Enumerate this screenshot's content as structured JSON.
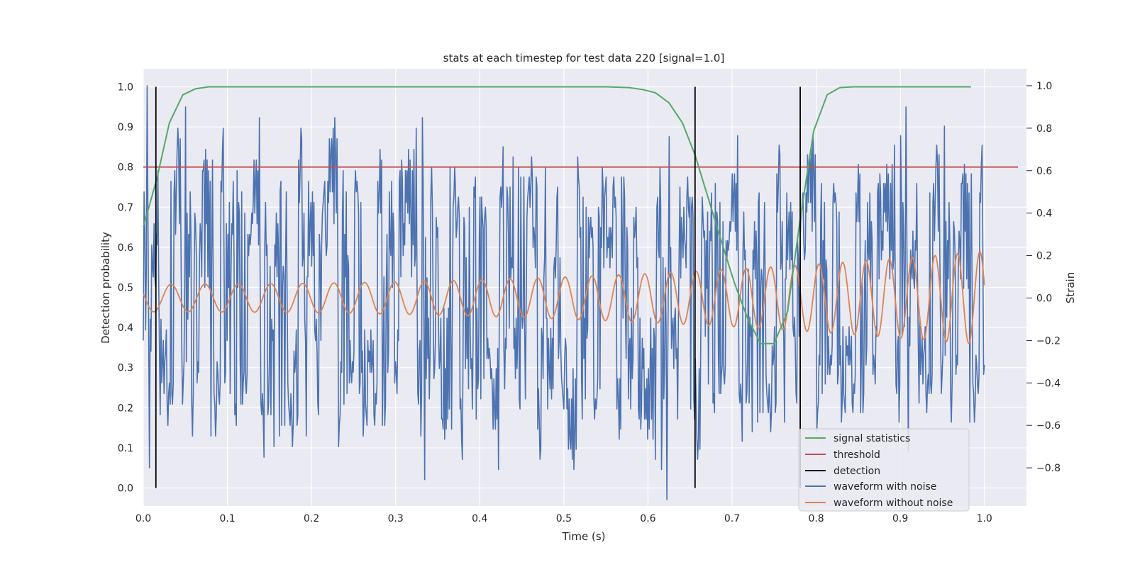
{
  "chart_data": {
    "type": "line",
    "title": "stats at each timestep for test data 220 [signal=1.0]",
    "xlabel": "Time (s)",
    "ylabel": "Detection probability",
    "ylabel_right": "Strain",
    "xlim": [
      0.0,
      1.05
    ],
    "ylim": [
      -0.045,
      1.045
    ],
    "ylim_right": [
      -0.98,
      1.08
    ],
    "xticks": [
      "0.0",
      "0.1",
      "0.2",
      "0.3",
      "0.4",
      "0.5",
      "0.6",
      "0.7",
      "0.8",
      "0.9",
      "1.0"
    ],
    "yticks": [
      "0.0",
      "0.1",
      "0.2",
      "0.3",
      "0.4",
      "0.5",
      "0.6",
      "0.7",
      "0.8",
      "0.9",
      "1.0"
    ],
    "yticks_right": [
      "−0.8",
      "−0.6",
      "−0.4",
      "−0.2",
      "0.0",
      "0.2",
      "0.4",
      "0.6",
      "0.8",
      "1.0"
    ],
    "grid": true,
    "legend_position": "lower-right",
    "legend": [
      {
        "label": "signal statistics",
        "color": "#55a868"
      },
      {
        "label": "threshold",
        "color": "#c44e52"
      },
      {
        "label": "detection",
        "color": "#000000"
      },
      {
        "label": "waveform with noise",
        "color": "#4c72b0"
      },
      {
        "label": "waveform without noise",
        "color": "#dd8452"
      }
    ],
    "series": [
      {
        "name": "signal statistics",
        "axis": "left",
        "color": "#55a868",
        "x": [
          0.0,
          0.016,
          0.031,
          0.047,
          0.062,
          0.078,
          0.094,
          0.2,
          0.4,
          0.55,
          0.578,
          0.594,
          0.609,
          0.625,
          0.641,
          0.656,
          0.672,
          0.688,
          0.703,
          0.719,
          0.734,
          0.75,
          0.766,
          0.781,
          0.797,
          0.813,
          0.828,
          0.844,
          0.9,
          0.984
        ],
        "y": [
          0.65,
          0.77,
          0.91,
          0.98,
          0.995,
          1.0,
          1.0,
          1.0,
          1.0,
          1.0,
          0.998,
          0.993,
          0.985,
          0.96,
          0.91,
          0.83,
          0.72,
          0.61,
          0.51,
          0.42,
          0.36,
          0.36,
          0.44,
          0.67,
          0.89,
          0.98,
          0.998,
          1.0,
          1.0,
          1.0
        ]
      },
      {
        "name": "threshold",
        "axis": "left",
        "color": "#c44e52",
        "x": [
          0.0,
          1.04
        ],
        "y": [
          0.8,
          0.8
        ]
      },
      {
        "name": "waveform with noise",
        "axis": "right",
        "color": "#4c72b0",
        "x_range": [
          0.0,
          1.0
        ],
        "amplitude_range": [
          -0.9,
          1.0
        ],
        "y": [
          -0.2,
          0.1,
          -0.5,
          0.4,
          -0.75,
          0.2,
          -0.3,
          0.5,
          -0.6,
          0.3,
          -0.1,
          0.25,
          -0.4,
          0.15,
          0.35,
          -0.5,
          0.1,
          -0.2,
          0.45,
          -0.35,
          0.9,
          -0.15,
          0.05,
          0.5,
          -0.65,
          0.2,
          0.35,
          -0.3,
          0.15,
          0.3,
          -0.45,
          0.1,
          0.25,
          -0.2,
          0.4,
          1.0,
          -0.35,
          0.2,
          0.1,
          -0.55,
          0.3,
          -0.1,
          0.4,
          -0.25,
          0.15,
          0.55,
          -0.5,
          0.05,
          0.3,
          -0.15,
          0.5,
          -0.4,
          0.2,
          -0.3,
          0.45,
          0.1,
          -0.8,
          0.25,
          -0.2,
          0.35,
          0.15,
          -0.45,
          0.5,
          -0.1,
          0.2,
          -0.35,
          0.45,
          -0.55,
          0.1,
          0.3,
          -0.25,
          0.55,
          -0.4,
          0.15,
          -0.1,
          0.35,
          -0.5,
          0.25,
          0.05,
          -0.3,
          0.5,
          -0.2,
          0.3,
          -0.65,
          0.15,
          0.4,
          -0.35,
          0.2,
          -0.15,
          0.55,
          -0.45,
          0.1,
          0.3,
          -0.25,
          0.45,
          -0.7,
          0.2,
          0.05,
          0.35,
          -0.4,
          0.5,
          -0.15,
          0.25,
          -0.55,
          0.4,
          0.1,
          -0.3,
          0.6,
          -0.2,
          0.15,
          -0.5,
          0.35,
          0.05,
          -0.35,
          0.5,
          -0.1,
          0.4,
          -0.6,
          0.2,
          0.3,
          -0.45,
          0.55,
          -0.25,
          0.1,
          0.6,
          -0.4,
          0.25,
          -0.15,
          0.5,
          -0.5,
          0.35,
          0.05,
          -0.3,
          0.6,
          -0.2,
          0.4,
          -0.55,
          0.2,
          0.45,
          -0.35,
          0.1,
          0.55,
          -0.45,
          0.3,
          -0.65,
          0.4,
          0.15,
          -0.25,
          0.6,
          -0.4,
          0.2,
          0.5,
          -0.3,
          0.35,
          -0.55,
          0.1,
          0.45,
          -0.2,
          0.55,
          -0.5,
          0.3,
          -0.1,
          0.65,
          -0.35,
          0.25,
          -0.6,
          0.5,
          0.1,
          -0.4,
          0.55,
          -0.25,
          0.4,
          0.05,
          -0.5,
          0.6,
          -0.3,
          0.2,
          -0.65,
          0.45,
          0.15,
          -0.4,
          0.6,
          -0.2,
          0.35,
          -0.55,
          0.5,
          0.1,
          -0.35,
          0.65,
          -0.45,
          0.25,
          -0.15,
          0.55,
          -0.6,
          0.4,
          0.05,
          -0.3,
          0.6,
          -0.5,
          0.3,
          0.15,
          -0.4,
          0.7,
          -0.25,
          0.45,
          -0.55,
          0.2,
          0.5,
          -0.45,
          0.35,
          -0.15,
          0.6,
          -0.6,
          0.25,
          0.05,
          -0.35,
          0.65,
          -0.5,
          0.4,
          -0.2,
          0.55,
          -0.4,
          0.3,
          0.1,
          -0.6,
          0.7,
          -0.3,
          0.45,
          -0.5,
          0.2,
          0.6,
          -0.45,
          0.35,
          -0.25,
          0.75,
          -0.55,
          0.3,
          0.05,
          -0.4,
          0.65,
          -0.35,
          0.5,
          -0.6,
          0.25,
          0.55,
          -0.5,
          0.4,
          -0.15,
          0.7,
          -0.45,
          0.3,
          -0.65,
          0.55,
          0.1,
          -0.35,
          0.75,
          -0.55,
          0.4,
          0.2,
          -0.45,
          0.6,
          -0.3,
          0.5,
          -0.7,
          0.35,
          0.65,
          -0.5,
          0.25,
          -0.2,
          0.8,
          -0.6,
          0.45,
          0.05,
          -0.4,
          0.7,
          -0.55,
          0.35,
          -0.25,
          0.65,
          -0.45,
          0.5,
          0.15,
          -0.6,
          0.85,
          -0.35,
          0.4,
          -0.5,
          0.6,
          0.2,
          -0.45,
          0.7,
          -0.3,
          0.55,
          -0.65,
          0.3,
          0.8,
          -0.5,
          0.4,
          -0.15,
          0.65,
          -0.55,
          0.5,
          0.1,
          -0.4,
          0.75,
          -0.6,
          0.35,
          -0.3,
          0.7,
          -0.45,
          0.55,
          0.2,
          -0.55,
          0.6,
          -0.35,
          0.8,
          -0.5,
          0.4,
          -0.7,
          0.65,
          0.25,
          -0.45,
          0.7,
          -0.25,
          0.5,
          -0.6,
          0.45,
          0.85,
          -0.5,
          0.35,
          -0.2,
          0.7,
          -0.55,
          0.6,
          0.1,
          -0.4,
          0.75,
          -0.65,
          0.4,
          -0.3,
          0.8,
          -0.5,
          0.55,
          0.25,
          -0.45,
          0.65,
          -0.35,
          0.75,
          -0.55,
          0.5,
          -0.2,
          0.85,
          -0.6,
          0.4,
          0.15,
          -0.45,
          0.7,
          -0.5,
          0.55,
          -0.3,
          0.6,
          0.2,
          -0.55,
          0.8,
          -0.4
        ]
      },
      {
        "name": "waveform without noise",
        "axis": "right",
        "color": "#dd8452",
        "x_range": [
          0.0,
          1.0
        ],
        "amplitude_start": 0.065,
        "amplitude_end": 0.22,
        "frequency_start_hz": 24,
        "frequency_end_hz": 38
      }
    ],
    "detections": [
      0.015,
      0.656,
      0.781
    ]
  }
}
